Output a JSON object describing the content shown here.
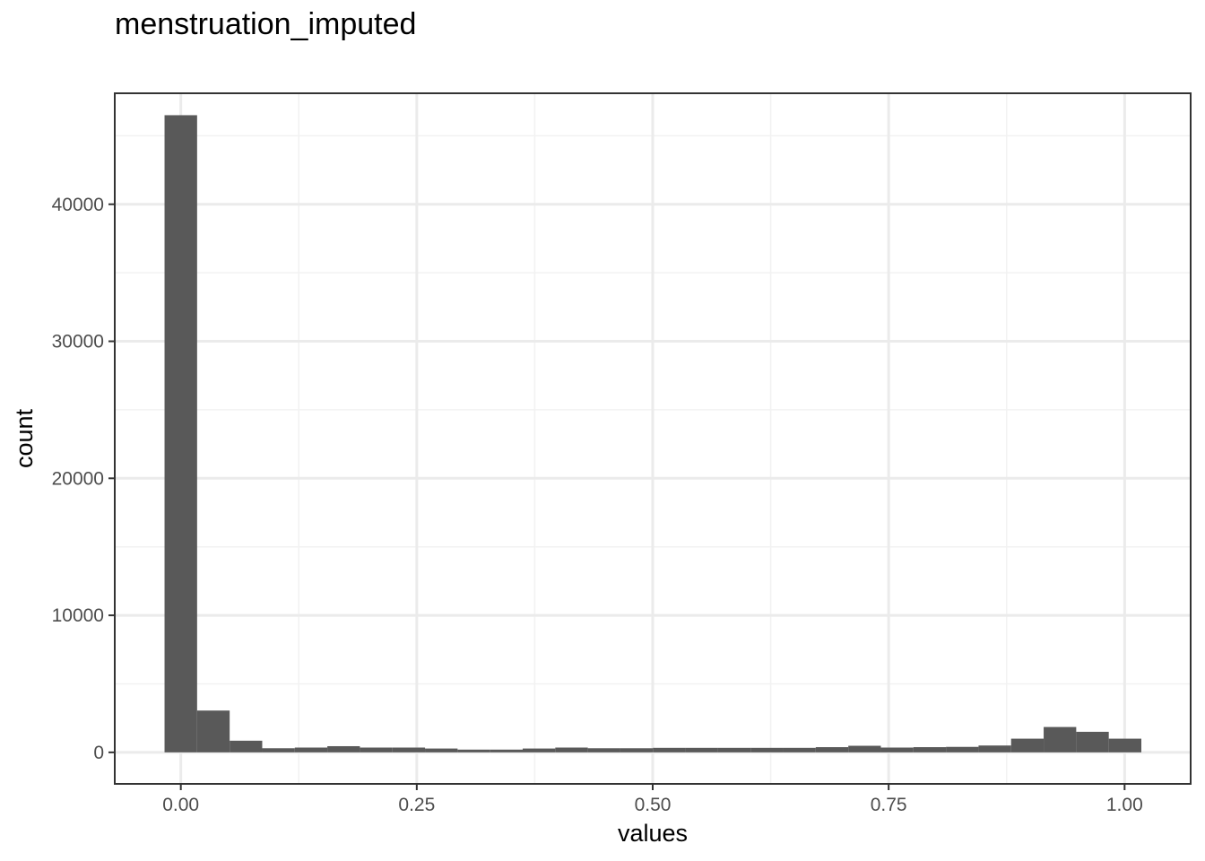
{
  "chart_data": {
    "type": "bar",
    "title": "menstruation_imputed",
    "xlabel": "values",
    "ylabel": "count",
    "xlim": [
      -0.07,
      1.07
    ],
    "ylim": [
      -2300,
      48100
    ],
    "x_ticks": [
      0.0,
      0.25,
      0.5,
      0.75,
      1.0
    ],
    "x_tick_labels": [
      "0.00",
      "0.25",
      "0.50",
      "0.75",
      "1.00"
    ],
    "y_ticks": [
      0,
      10000,
      20000,
      30000,
      40000
    ],
    "y_tick_labels": [
      "0",
      "10000",
      "20000",
      "30000",
      "40000"
    ],
    "bin_width": 0.0345,
    "bin_start": -0.01725,
    "values": [
      46500,
      3050,
      850,
      300,
      350,
      450,
      350,
      350,
      280,
      200,
      200,
      280,
      350,
      300,
      300,
      330,
      330,
      330,
      330,
      330,
      380,
      480,
      350,
      380,
      400,
      500,
      1000,
      1850,
      1500,
      1000
    ],
    "bar_color": "#595959",
    "grid": true
  }
}
